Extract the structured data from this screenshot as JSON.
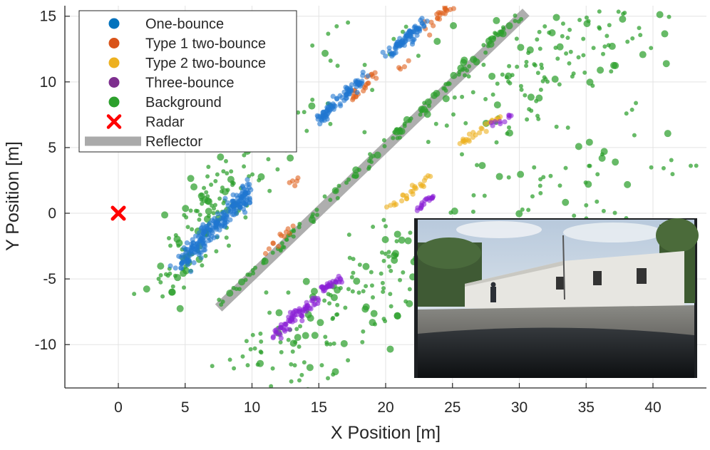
{
  "chart_data": {
    "type": "scatter",
    "title": "",
    "xlabel": "X Position [m]",
    "ylabel": "Y Position [m]",
    "xlim": [
      -4,
      44
    ],
    "ylim": [
      -13.3,
      15.8
    ],
    "xticks": [
      0,
      5,
      10,
      15,
      20,
      25,
      30,
      35,
      40
    ],
    "yticks": [
      15,
      10,
      5,
      0,
      -5,
      -10
    ],
    "xtick_labels": [
      "0",
      "5",
      "10",
      "15",
      "20",
      "25",
      "30",
      "35",
      "40"
    ],
    "ytick_labels": [
      "15",
      "10",
      "5",
      "0",
      "-5",
      "-10"
    ],
    "grid": true,
    "legend_position": "top-left",
    "legend": [
      {
        "label": "One-bounce",
        "marker": "dot",
        "color": "#0072BD"
      },
      {
        "label": "Type 1 two-bounce",
        "marker": "dot",
        "color": "#D95319"
      },
      {
        "label": "Type 2 two-bounce",
        "marker": "dot",
        "color": "#EDB120"
      },
      {
        "label": "Three-bounce",
        "marker": "dot",
        "color": "#7E2F8E"
      },
      {
        "label": "Background",
        "marker": "dot",
        "color": "#2CA02C"
      },
      {
        "label": "Radar",
        "marker": "x",
        "color": "#FF0000"
      },
      {
        "label": "Reflector",
        "marker": "thick-line",
        "color": "#AAAAAA"
      }
    ],
    "radar": {
      "x": 0,
      "y": 0
    },
    "reflector": {
      "x": [
        7.5,
        30.5
      ],
      "y": [
        -7.2,
        15.3
      ]
    },
    "series": [
      {
        "name": "One-bounce",
        "color": "#1f77d0",
        "clusters": [
          {
            "x0": 4.5,
            "y0": -4.0,
            "x1": 10.0,
            "y1": 2.0,
            "n": 240,
            "spread": 0.35
          },
          {
            "x0": 15.0,
            "y0": 7.2,
            "x1": 18.5,
            "y1": 10.5,
            "n": 90,
            "spread": 0.2
          },
          {
            "x0": 20.2,
            "y0": 12.1,
            "x1": 23.0,
            "y1": 14.6,
            "n": 80,
            "spread": 0.2
          }
        ]
      },
      {
        "name": "Type 1 two-bounce",
        "color": "#e0601c",
        "clusters": [
          {
            "x0": 17.0,
            "y0": 8.2,
            "x1": 19.2,
            "y1": 10.6,
            "n": 22,
            "spread": 0.18
          },
          {
            "x0": 22.8,
            "y0": 14.0,
            "x1": 24.8,
            "y1": 15.7,
            "n": 22,
            "spread": 0.18
          },
          {
            "x0": 11.0,
            "y0": -3.3,
            "x1": 13.0,
            "y1": -1.1,
            "n": 12,
            "spread": 0.2
          },
          {
            "x0": 12.8,
            "y0": 1.6,
            "x1": 13.5,
            "y1": 2.8,
            "n": 5,
            "spread": 0.15
          },
          {
            "x0": 21.0,
            "y0": 11.0,
            "x1": 21.8,
            "y1": 11.6,
            "n": 4,
            "spread": 0.1
          }
        ]
      },
      {
        "name": "Type 2 two-bounce",
        "color": "#edb120",
        "clusters": [
          {
            "x0": 25.5,
            "y0": 5.2,
            "x1": 28.5,
            "y1": 7.3,
            "n": 26,
            "spread": 0.15
          },
          {
            "x0": 20.3,
            "y0": 0.3,
            "x1": 23.4,
            "y1": 2.8,
            "n": 26,
            "spread": 0.15
          }
        ]
      },
      {
        "name": "Three-bounce",
        "color": "#8b1fd6",
        "clusters": [
          {
            "x0": 11.5,
            "y0": -9.4,
            "x1": 14.8,
            "y1": -6.6,
            "n": 70,
            "spread": 0.2
          },
          {
            "x0": 15.3,
            "y0": -5.8,
            "x1": 16.8,
            "y1": -4.9,
            "n": 30,
            "spread": 0.15
          },
          {
            "x0": 22.2,
            "y0": 0.2,
            "x1": 23.5,
            "y1": 1.2,
            "n": 18,
            "spread": 0.12
          },
          {
            "x0": 27.6,
            "y0": 6.5,
            "x1": 29.5,
            "y1": 7.4,
            "n": 10,
            "spread": 0.12
          }
        ]
      },
      {
        "name": "Background",
        "color": "#2ca02c",
        "clusters": [
          {
            "x0": 7.8,
            "y0": -6.8,
            "x1": 30.2,
            "y1": 15.2,
            "n": 130,
            "spread": 0.2
          },
          {
            "x0": 3.5,
            "y0": -6.0,
            "x1": 8.5,
            "y1": 3.0,
            "n": 120,
            "spread": 1.1
          },
          {
            "x0": 25.5,
            "y0": 8.0,
            "x1": 39.0,
            "y1": 15.5,
            "n": 140,
            "spread": 2.2
          },
          {
            "x0": 10.0,
            "y0": -13.0,
            "x1": 24.0,
            "y1": -2.0,
            "n": 170,
            "spread": 1.9
          },
          {
            "x0": 27.0,
            "y0": -2.0,
            "x1": 40.0,
            "y1": 5.0,
            "n": 70,
            "spread": 2.3
          },
          {
            "x0": 9.0,
            "y0": 3.0,
            "x1": 22.0,
            "y1": 16.0,
            "n": 50,
            "spread": 2.0
          }
        ]
      }
    ]
  },
  "inset_photo": {
    "description_label": "Camera view of the measurement scene"
  }
}
